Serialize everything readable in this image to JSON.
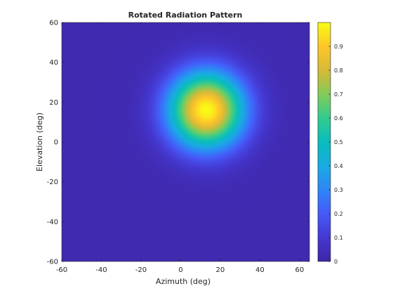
{
  "chart_data": {
    "type": "heatmap",
    "title": "Rotated Radiation Pattern",
    "xlabel": "Azimuth (deg)",
    "ylabel": "Elevation (deg)",
    "xlim": [
      -60,
      65
    ],
    "ylim": [
      -60,
      60
    ],
    "xticks": [
      -60,
      -40,
      -20,
      0,
      20,
      40,
      60
    ],
    "yticks": [
      -60,
      -40,
      -20,
      0,
      20,
      40,
      60
    ],
    "colorbar": {
      "range": [
        0,
        1
      ],
      "ticks": [
        0,
        0.1,
        0.2,
        0.3,
        0.4,
        0.5,
        0.6,
        0.7,
        0.8,
        0.9
      ],
      "tick_labels": [
        "0",
        "0.1",
        "0.2",
        "0.3",
        "0.4",
        "0.5",
        "0.6",
        "0.7",
        "0.8",
        "0.9"
      ],
      "colormap": "parula"
    },
    "peak": {
      "azimuth": 13,
      "elevation": 16,
      "value": 1.0
    },
    "grid": false
  }
}
